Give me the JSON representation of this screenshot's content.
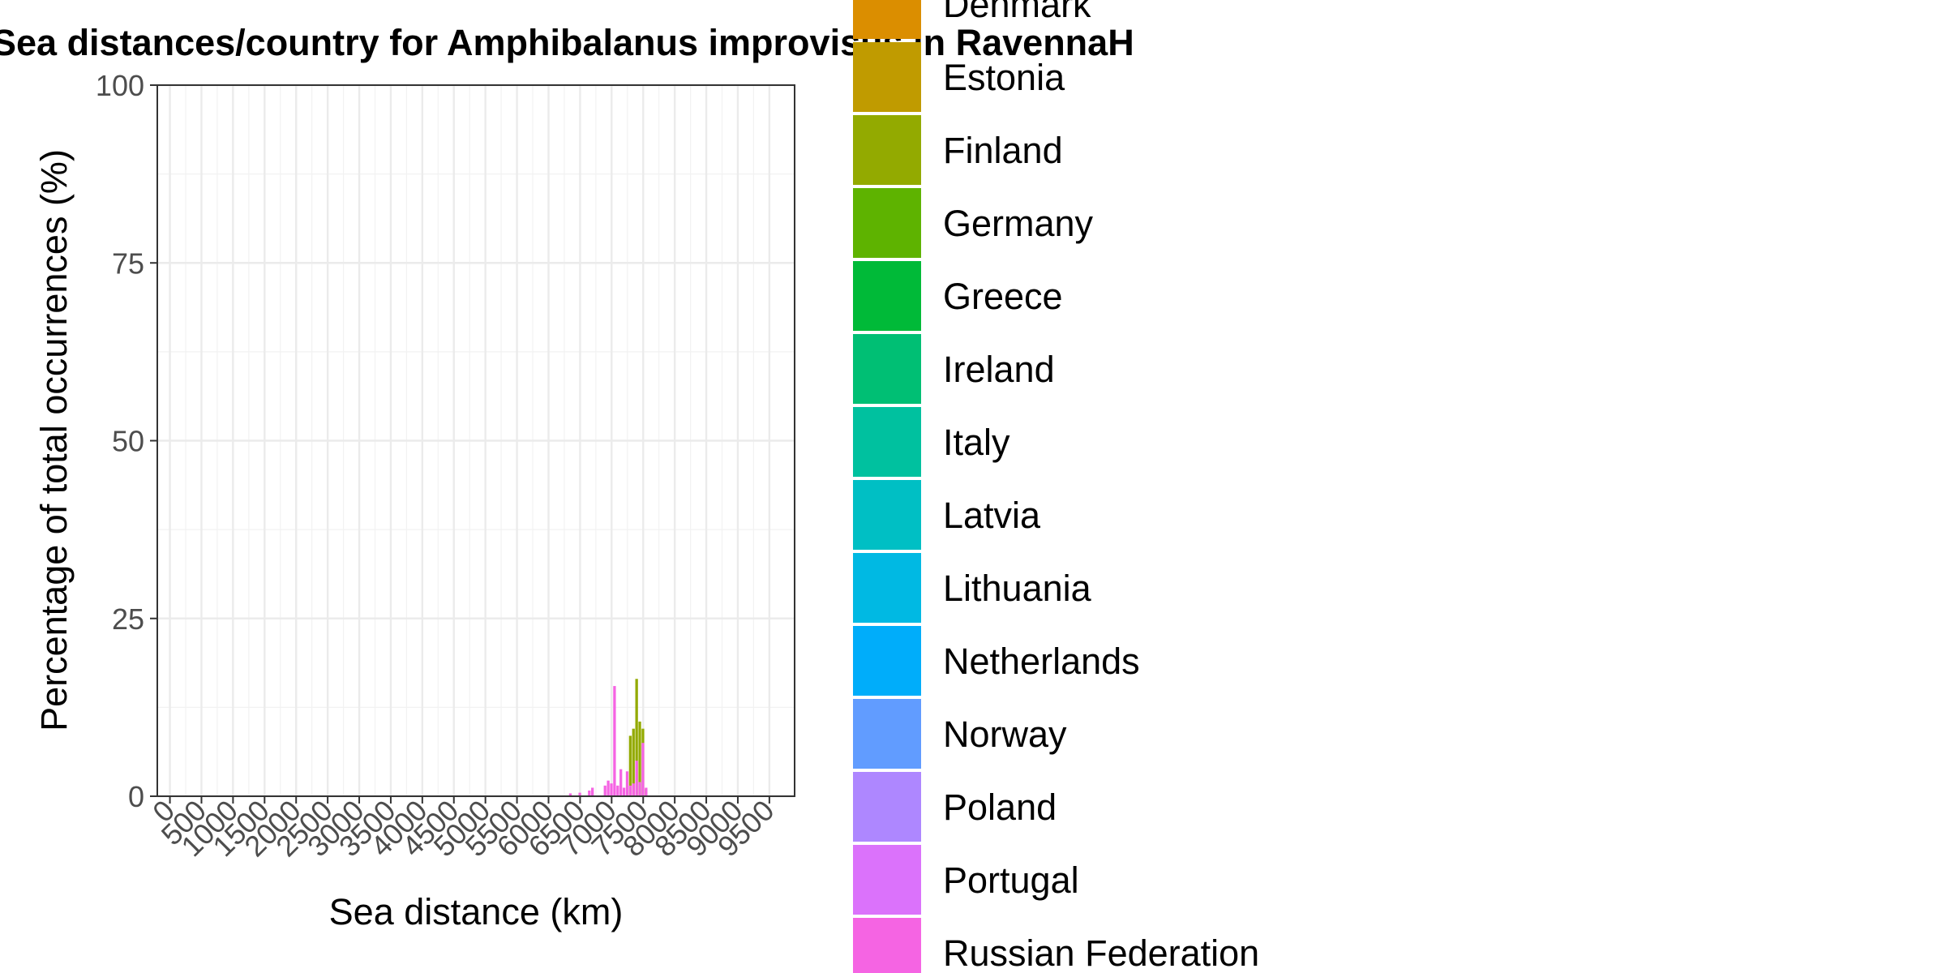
{
  "chart_data": {
    "type": "bar",
    "title": "Sea distances/country for Amphibalanus improvisus in RavennaH",
    "xlabel": "Sea distance (km)",
    "ylabel": "Percentage of total occurrences (%)",
    "xlim": [
      -200,
      9900
    ],
    "ylim": [
      0,
      100
    ],
    "x_ticks": [
      0,
      500,
      1000,
      1500,
      2000,
      2500,
      3000,
      3500,
      4000,
      4500,
      5000,
      5500,
      6000,
      6500,
      7000,
      7500,
      8000,
      8500,
      9000,
      9500
    ],
    "x_tick_labels": [
      "0",
      "500",
      "1000",
      "1500",
      "2000",
      "2500",
      "3000",
      "3500",
      "4000",
      "4500",
      "5000",
      "5500",
      "6000",
      "6500",
      "7000",
      "7500",
      "8000",
      "8500",
      "9000",
      "9500"
    ],
    "y_ticks": [
      0,
      25,
      50,
      75,
      100
    ],
    "y_tick_labels": [
      "0",
      "25",
      "50",
      "75",
      "100"
    ],
    "bar_width_km": 50,
    "grid": true,
    "legend_position": "right",
    "series": [
      {
        "name": "Finland",
        "color": "#93AA00",
        "points": [
          [
            7300,
            8.5
          ],
          [
            7350,
            9.5
          ],
          [
            7400,
            16.5
          ],
          [
            7450,
            10.5
          ],
          [
            7500,
            9.5
          ],
          [
            7550,
            1.0
          ]
        ]
      },
      {
        "name": "Russian Federation",
        "color": "#F564E3",
        "points": [
          [
            6350,
            0.4
          ],
          [
            6500,
            0.5
          ],
          [
            6650,
            0.8
          ],
          [
            6700,
            1.2
          ],
          [
            6900,
            1.5
          ],
          [
            6950,
            2.2
          ],
          [
            7000,
            1.8
          ],
          [
            7050,
            15.5
          ],
          [
            7100,
            1.5
          ],
          [
            7150,
            3.8
          ],
          [
            7200,
            1.2
          ],
          [
            7250,
            3.5
          ],
          [
            7300,
            1.5
          ],
          [
            7350,
            1.8
          ],
          [
            7400,
            5.0
          ],
          [
            7450,
            2.0
          ],
          [
            7500,
            7.5
          ],
          [
            7550,
            1.2
          ]
        ]
      }
    ],
    "legend": [
      {
        "name": "Denmark",
        "color": "#DB8E00"
      },
      {
        "name": "Estonia",
        "color": "#C09B00"
      },
      {
        "name": "Finland",
        "color": "#93AA00"
      },
      {
        "name": "Germany",
        "color": "#5EB300"
      },
      {
        "name": "Greece",
        "color": "#00BA38"
      },
      {
        "name": "Ireland",
        "color": "#00BF74"
      },
      {
        "name": "Italy",
        "color": "#00C19F"
      },
      {
        "name": "Latvia",
        "color": "#00BFC4"
      },
      {
        "name": "Lithuania",
        "color": "#00B9E3"
      },
      {
        "name": "Netherlands",
        "color": "#00ADFA"
      },
      {
        "name": "Norway",
        "color": "#619CFF"
      },
      {
        "name": "Poland",
        "color": "#AE87FF"
      },
      {
        "name": "Portugal",
        "color": "#DB72FB"
      },
      {
        "name": "Russian Federation",
        "color": "#F564E3"
      }
    ]
  }
}
